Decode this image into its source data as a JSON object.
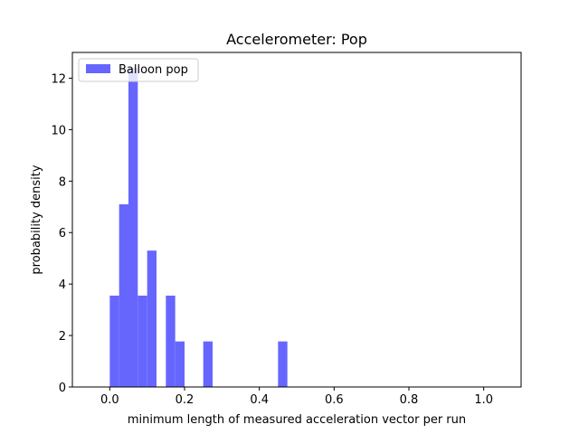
{
  "chart_data": {
    "type": "bar",
    "histogram": true,
    "title": "Accelerometer: Pop",
    "xlabel": "minimum length of measured acceleration vector per run",
    "ylabel": "probability density",
    "xlim": [
      -0.1,
      1.1
    ],
    "ylim": [
      0,
      13
    ],
    "xticks": [
      0.0,
      0.2,
      0.4,
      0.6,
      0.8,
      1.0
    ],
    "xtick_labels": [
      "0.0",
      "0.2",
      "0.4",
      "0.6",
      "0.8",
      "1.0"
    ],
    "yticks": [
      0,
      2,
      4,
      6,
      8,
      10,
      12
    ],
    "ytick_labels": [
      "0",
      "2",
      "4",
      "6",
      "8",
      "10",
      "12"
    ],
    "bin_width": 0.025,
    "legend_position": "upper left",
    "grid": false,
    "series": [
      {
        "name": "Balloon pop",
        "color": "#6666ff",
        "bins": [
          {
            "x0": 0.0,
            "x1": 0.025,
            "value": 3.55
          },
          {
            "x0": 0.025,
            "x1": 0.05,
            "value": 7.1
          },
          {
            "x0": 0.05,
            "x1": 0.075,
            "value": 12.4
          },
          {
            "x0": 0.075,
            "x1": 0.1,
            "value": 3.55
          },
          {
            "x0": 0.1,
            "x1": 0.125,
            "value": 5.3
          },
          {
            "x0": 0.15,
            "x1": 0.175,
            "value": 3.55
          },
          {
            "x0": 0.175,
            "x1": 0.2,
            "value": 1.77
          },
          {
            "x0": 0.25,
            "x1": 0.275,
            "value": 1.77
          },
          {
            "x0": 0.45,
            "x1": 0.475,
            "value": 1.77
          }
        ]
      }
    ]
  }
}
